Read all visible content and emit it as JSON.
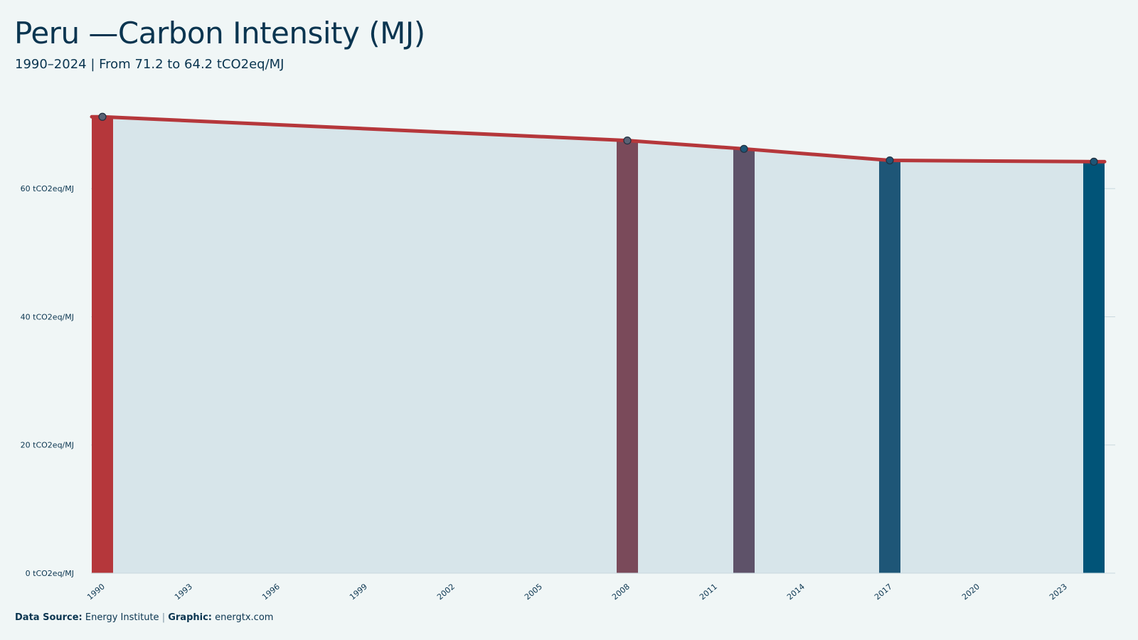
{
  "header": {
    "title": "Peru —Carbon Intensity (MJ)",
    "subtitle": "1990–2024 | From 71.2 to 64.2 tCO2eq/MJ"
  },
  "footer": {
    "source_label": "Data Source:",
    "source_value": "Energy Institute",
    "separator": "|",
    "graphic_label": "Graphic:",
    "graphic_value": "energtx.com"
  },
  "colors": {
    "line": "#b5373b",
    "area": "#d7e5ea",
    "grid": "#c9d8de",
    "text": "#0a3550",
    "bar_1990": "#b5373b",
    "bar_2008": "#7a4a5a",
    "bar_2012": "#5e5269",
    "bar_2017": "#1e5677",
    "bar_2024": "#015478"
  },
  "chart_data": {
    "type": "area",
    "x": [
      1990,
      2008,
      2012,
      2017,
      2024
    ],
    "series": [
      {
        "values": [
          71.2,
          67.5,
          66.2,
          64.4,
          64.2
        ]
      }
    ],
    "highlight_bars": [
      {
        "x": 1990,
        "value": 71.2,
        "color": "#b5373b"
      },
      {
        "x": 2008,
        "value": 67.5,
        "color": "#7a4a5a"
      },
      {
        "x": 2012,
        "value": 66.2,
        "color": "#5e5269"
      },
      {
        "x": 2017,
        "value": 64.4,
        "color": "#1e5677"
      },
      {
        "x": 2024,
        "value": 64.2,
        "color": "#015478"
      }
    ],
    "xlim": [
      1990,
      2024
    ],
    "ylim": [
      0,
      75
    ],
    "x_ticks": [
      1990,
      1993,
      1996,
      1999,
      2002,
      2005,
      2008,
      2011,
      2014,
      2017,
      2020,
      2023
    ],
    "y_ticks": [
      0,
      20,
      40,
      60
    ],
    "y_tick_labels": [
      "0 tCO2eq/MJ",
      "20 tCO2eq/MJ",
      "40 tCO2eq/MJ",
      "60 tCO2eq/MJ"
    ],
    "grid": true
  }
}
